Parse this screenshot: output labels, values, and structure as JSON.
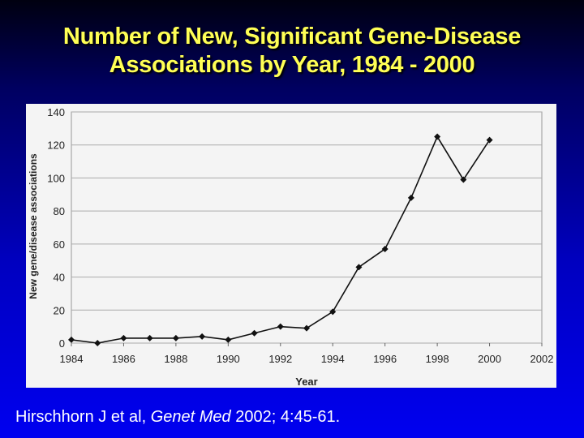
{
  "slide": {
    "title_line1": "Number of New, Significant Gene-Disease",
    "title_line2": "Associations by Year, 1984 - 2000",
    "citation_authors": "Hirschhorn J et al, ",
    "citation_journal": "Genet Med",
    "citation_rest": " 2002; 4:45-61."
  },
  "chart_data": {
    "type": "line",
    "title": "",
    "xlabel": "Year",
    "ylabel": "New gene/disease associations",
    "xlim": [
      1984,
      2002
    ],
    "ylim": [
      0,
      140
    ],
    "xticks": [
      "1984",
      "1986",
      "1988",
      "1990",
      "1992",
      "1994",
      "1996",
      "1998",
      "2000",
      "2002"
    ],
    "yticks": [
      "0",
      "20",
      "40",
      "60",
      "80",
      "100",
      "120",
      "140"
    ],
    "grid": true,
    "x": [
      1984,
      1985,
      1986,
      1987,
      1988,
      1989,
      1990,
      1991,
      1992,
      1993,
      1994,
      1995,
      1996,
      1997,
      1998,
      1999,
      2000
    ],
    "series": [
      {
        "name": "New gene/disease associations",
        "values": [
          2,
          0,
          3,
          3,
          3,
          4,
          2,
          6,
          10,
          9,
          19,
          46,
          57,
          88,
          125,
          99,
          123
        ]
      }
    ]
  }
}
